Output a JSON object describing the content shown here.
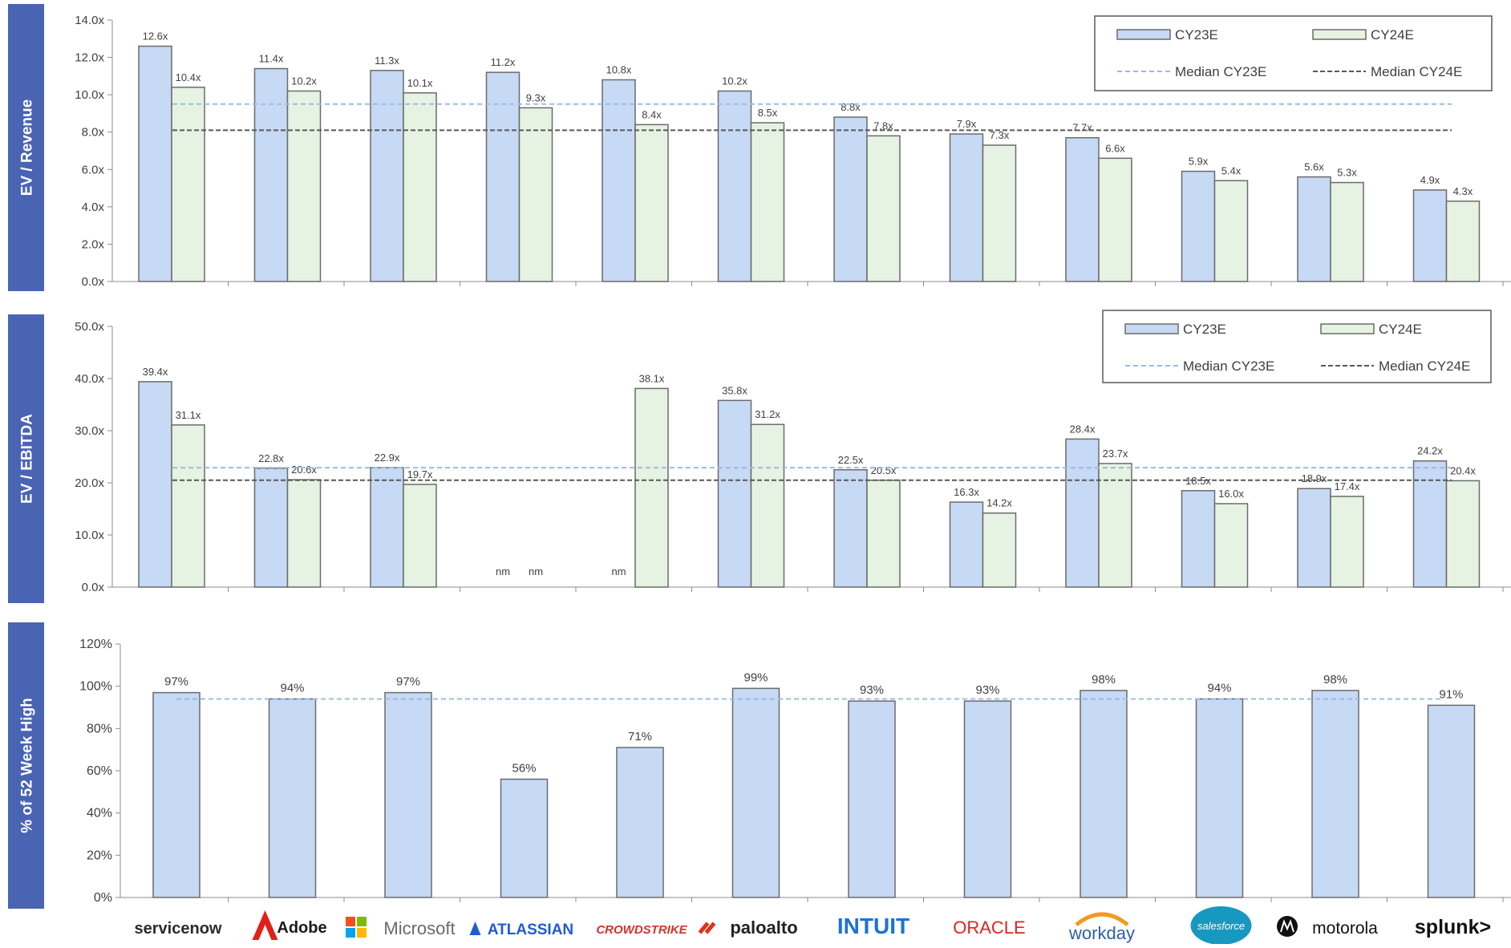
{
  "companies": [
    "servicenow",
    "Adobe",
    "Microsoft",
    "ATLASSIAN",
    "CROWDSTRIKE",
    "paloalto",
    "INTUIT",
    "ORACLE",
    "workday",
    "salesforce",
    "motorola",
    "splunk>"
  ],
  "colors": {
    "cy23": "#c6d9f5",
    "cy24": "#e6f2e2",
    "bar_edge": "#6b6b6b",
    "median23": "#9dbbe3",
    "median24": "#595959",
    "side_tab": "#4a64b4",
    "axis": "#8c8c8c",
    "text": "#404040"
  },
  "chart_data": [
    {
      "type": "bar",
      "ylabel": "EV / Revenue",
      "ylim": [
        0,
        14
      ],
      "yticks": [
        "0.0x",
        "2.0x",
        "4.0x",
        "6.0x",
        "8.0x",
        "10.0x",
        "12.0x",
        "14.0x"
      ],
      "categories": [
        "servicenow",
        "Adobe",
        "Microsoft",
        "ATLASSIAN",
        "CROWDSTRIKE",
        "paloalto",
        "INTUIT",
        "ORACLE",
        "workday",
        "salesforce",
        "motorola",
        "splunk>"
      ],
      "series": [
        {
          "name": "CY23E",
          "values": [
            12.6,
            11.4,
            11.3,
            11.2,
            10.8,
            10.2,
            8.8,
            7.9,
            7.7,
            5.9,
            5.6,
            4.9
          ],
          "labels": [
            "12.6x",
            "11.4x",
            "11.3x",
            "11.2x",
            "10.8x",
            "10.2x",
            "8.8x",
            "7.9x",
            "7.7x",
            "5.9x",
            "5.6x",
            "4.9x"
          ]
        },
        {
          "name": "CY24E",
          "values": [
            10.4,
            10.2,
            10.1,
            9.3,
            8.4,
            8.5,
            7.8,
            7.3,
            6.6,
            5.4,
            5.3,
            4.3
          ],
          "labels": [
            "10.4x",
            "10.2x",
            "10.1x",
            "9.3x",
            "8.4x",
            "8.5x",
            "7.8x",
            "7.3x",
            "6.6x",
            "5.4x",
            "5.3x",
            "4.3x"
          ]
        }
      ],
      "medians": [
        {
          "name": "Median CY23E",
          "value": 9.5
        },
        {
          "name": "Median CY24E",
          "value": 8.1
        }
      ],
      "legend": "top-right"
    },
    {
      "type": "bar",
      "ylabel": "EV / EBITDA",
      "ylim": [
        0,
        50
      ],
      "yticks": [
        "0.0x",
        "10.0x",
        "20.0x",
        "30.0x",
        "40.0x",
        "50.0x"
      ],
      "categories": [
        "servicenow",
        "Adobe",
        "Microsoft",
        "ATLASSIAN",
        "CROWDSTRIKE",
        "paloalto",
        "INTUIT",
        "ORACLE",
        "workday",
        "salesforce",
        "motorola",
        "splunk>"
      ],
      "series": [
        {
          "name": "CY23E",
          "values": [
            39.4,
            22.8,
            22.9,
            null,
            null,
            35.8,
            22.5,
            16.3,
            28.4,
            18.5,
            18.9,
            24.2
          ],
          "labels": [
            "39.4x",
            "22.8x",
            "22.9x",
            "nm",
            "nm",
            "35.8x",
            "22.5x",
            "16.3x",
            "28.4x",
            "18.5x",
            "18.9x",
            "24.2x"
          ]
        },
        {
          "name": "CY24E",
          "values": [
            31.1,
            20.6,
            19.7,
            null,
            38.1,
            31.2,
            20.5,
            14.2,
            23.7,
            16.0,
            17.4,
            20.4
          ],
          "labels": [
            "31.1x",
            "20.6x",
            "19.7x",
            "nm",
            "38.1x",
            "31.2x",
            "20.5x",
            "14.2x",
            "23.7x",
            "16.0x",
            "17.4x",
            "20.4x"
          ]
        }
      ],
      "medians": [
        {
          "name": "Median CY23E",
          "value": 22.9
        },
        {
          "name": "Median CY24E",
          "value": 20.5
        }
      ],
      "legend": "top-right"
    },
    {
      "type": "bar",
      "ylabel": "% of 52 Week High",
      "ylim": [
        0,
        120
      ],
      "yticks": [
        "0%",
        "20%",
        "40%",
        "60%",
        "80%",
        "100%",
        "120%"
      ],
      "categories": [
        "servicenow",
        "Adobe",
        "Microsoft",
        "ATLASSIAN",
        "CROWDSTRIKE",
        "paloalto",
        "INTUIT",
        "ORACLE",
        "workday",
        "salesforce",
        "motorola",
        "splunk>"
      ],
      "series": [
        {
          "name": "",
          "values": [
            97,
            94,
            97,
            56,
            71,
            99,
            93,
            93,
            98,
            94,
            98,
            91
          ],
          "labels": [
            "97%",
            "94%",
            "97%",
            "56%",
            "71%",
            "99%",
            "93%",
            "93%",
            "98%",
            "94%",
            "98%",
            "91%"
          ]
        }
      ],
      "medians": [
        {
          "name": "",
          "value": 94
        }
      ]
    }
  ]
}
